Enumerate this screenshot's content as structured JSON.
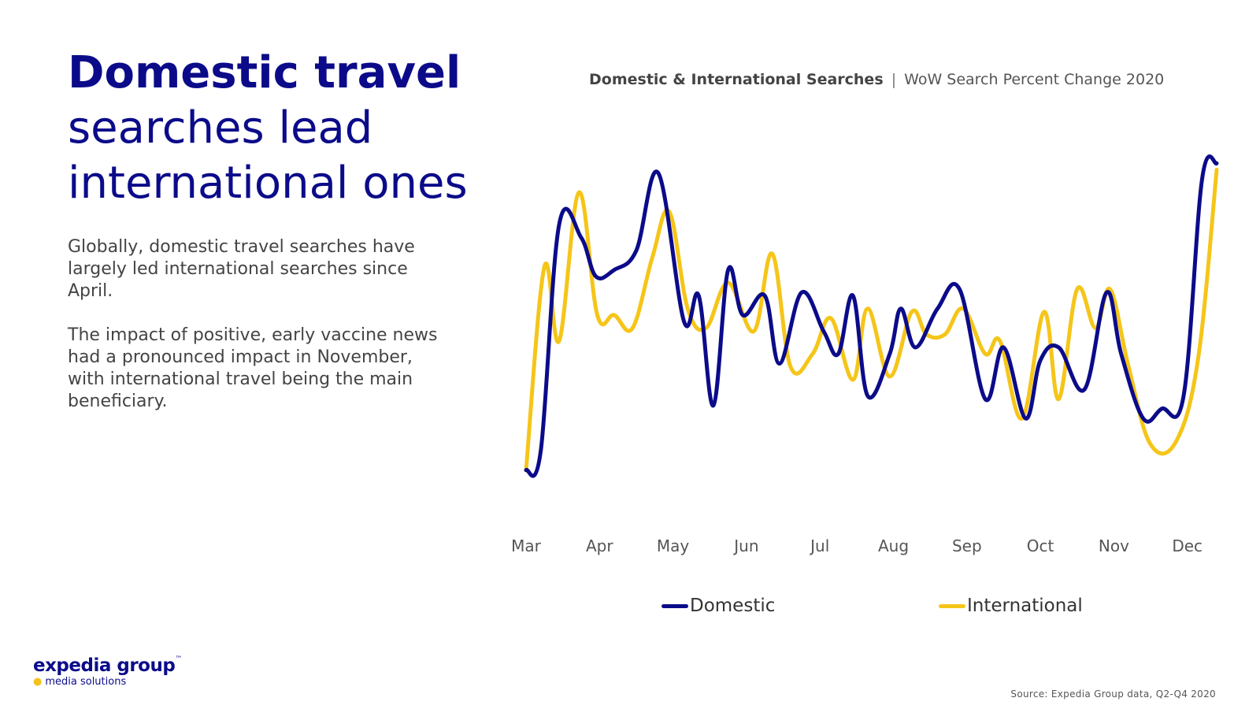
{
  "headline": {
    "bold": "Domestic travel",
    "rest_line1": "searches lead",
    "rest_line2": "international ones"
  },
  "body": {
    "p1": "Globally, domestic travel searches have largely led international searches since April.",
    "p2": "The impact of positive, early vaccine news had a pronounced impact in November, with international travel being the main beneficiary."
  },
  "logo": {
    "main": "expedia group",
    "tm": "™",
    "sub": "media solutions"
  },
  "source": "Source: Expedia Group data, Q2-Q4 2020",
  "chart_data": {
    "type": "line",
    "title_bold": "Domestic & International Searches",
    "title_separator": "|",
    "title_rest": "WoW Search Percent Change 2020",
    "xlabel": "",
    "ylabel": "",
    "categories": [
      "Mar",
      "Apr",
      "May",
      "Jun",
      "Jul",
      "Aug",
      "Sep",
      "Oct",
      "Nov",
      "Dec"
    ],
    "y_axis_visible": false,
    "ylim": [
      0,
      100
    ],
    "grid": false,
    "legend_position": "bottom",
    "series": [
      {
        "name": "Domestic",
        "color": "#0b0b8a",
        "x": [
          0,
          0.2,
          0.45,
          0.75,
          0.95,
          1.2,
          1.5,
          1.8,
          2.15,
          2.35,
          2.55,
          2.75,
          2.95,
          3.25,
          3.45,
          3.75,
          4.05,
          4.25,
          4.45,
          4.65,
          4.95,
          5.1,
          5.3,
          5.6,
          5.9,
          6.25,
          6.5,
          6.8,
          7.0,
          7.25,
          7.6,
          7.9,
          8.1,
          8.4,
          8.65,
          8.95,
          9.2,
          9.4
        ],
        "values": [
          2,
          8,
          78,
          74,
          62,
          64,
          70,
          94,
          48,
          56,
          22,
          64,
          50,
          56,
          35,
          57,
          45,
          38,
          56,
          25,
          38,
          52,
          40,
          52,
          58,
          24,
          40,
          18,
          36,
          40,
          27,
          57,
          38,
          18,
          21,
          25,
          92,
          97
        ]
      },
      {
        "name": "International",
        "color": "#f5c518",
        "x": [
          0,
          0.25,
          0.45,
          0.72,
          0.97,
          1.2,
          1.45,
          1.72,
          1.95,
          2.2,
          2.45,
          2.75,
          3.1,
          3.35,
          3.6,
          3.9,
          4.15,
          4.45,
          4.65,
          4.95,
          5.25,
          5.45,
          5.7,
          5.95,
          6.25,
          6.45,
          6.75,
          7.05,
          7.25,
          7.5,
          7.75,
          7.95,
          8.2,
          8.5,
          8.85,
          9.15,
          9.4
        ],
        "values": [
          2,
          65,
          42,
          88,
          50,
          50,
          46,
          68,
          82,
          52,
          46,
          60,
          45,
          69,
          34,
          38,
          49,
          30,
          52,
          31,
          51,
          44,
          44,
          52,
          38,
          42,
          18,
          51,
          24,
          58,
          46,
          58,
          34,
          10,
          11,
          37,
          95
        ]
      }
    ]
  }
}
